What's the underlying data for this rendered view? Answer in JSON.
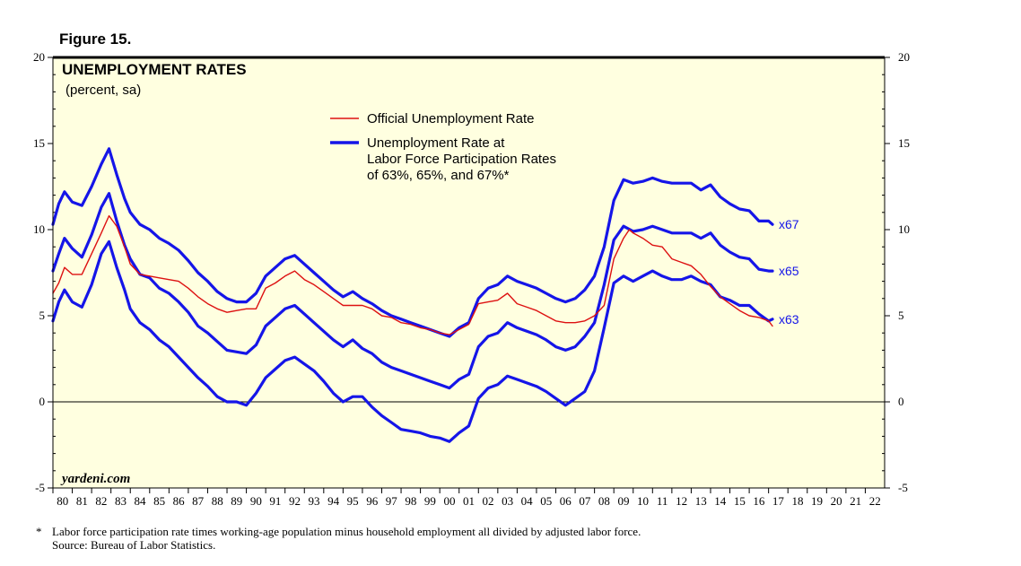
{
  "figure_label": "Figure 15.",
  "footnote": "Labor force participation rate times working-age population minus household employment all divided by adjusted labor force.",
  "footnote_marker": "*",
  "source": "Source: Bureau of Labor Statistics.",
  "colors": {
    "official": "#dd1111",
    "adjusted": "#1515e8",
    "plot_bg": "#ffffe0",
    "axis": "#000000"
  },
  "chart_data": {
    "type": "line",
    "title": "UNEMPLOYMENT RATES",
    "subtitle": "(percent, sa)",
    "watermark": "yardeni.com",
    "ylim": [
      -5,
      20
    ],
    "yticks": [
      -5,
      0,
      5,
      10,
      15,
      20
    ],
    "xlim": [
      1980,
      2023
    ],
    "xtick_labels": [
      "80",
      "81",
      "82",
      "83",
      "84",
      "85",
      "86",
      "87",
      "88",
      "89",
      "90",
      "91",
      "92",
      "93",
      "94",
      "95",
      "96",
      "97",
      "98",
      "99",
      "00",
      "01",
      "02",
      "03",
      "04",
      "05",
      "06",
      "07",
      "08",
      "09",
      "10",
      "11",
      "12",
      "13",
      "14",
      "15",
      "16",
      "17",
      "18",
      "19",
      "20",
      "21",
      "22"
    ],
    "legend": {
      "official": "Official Unemployment Rate",
      "adjusted": [
        "Unemployment Rate at",
        "Labor Force Participation Rates",
        "of 63%, 65%, and 67%*"
      ]
    },
    "series": [
      {
        "name": "Official Unemployment Rate",
        "label": "",
        "color": "#dd1111",
        "width": 1.4,
        "x": [
          1980.0,
          1980.3,
          1980.6,
          1981.0,
          1981.5,
          1982.0,
          1982.5,
          1982.9,
          1983.3,
          1983.7,
          1984.0,
          1984.5,
          1985.0,
          1985.5,
          1986.0,
          1986.5,
          1987.0,
          1987.5,
          1988.0,
          1988.5,
          1989.0,
          1989.5,
          1990.0,
          1990.5,
          1991.0,
          1991.5,
          1992.0,
          1992.5,
          1993.0,
          1993.5,
          1994.0,
          1994.5,
          1995.0,
          1995.5,
          1996.0,
          1996.5,
          1997.0,
          1997.5,
          1998.0,
          1998.5,
          1999.0,
          1999.5,
          2000.0,
          2000.5,
          2001.0,
          2001.5,
          2002.0,
          2002.5,
          2003.0,
          2003.5,
          2004.0,
          2004.5,
          2005.0,
          2005.5,
          2006.0,
          2006.5,
          2007.0,
          2007.5,
          2008.0,
          2008.5,
          2009.0,
          2009.5,
          2009.8,
          2010.0,
          2010.5,
          2011.0,
          2011.5,
          2012.0,
          2012.5,
          2013.0,
          2013.5,
          2014.0,
          2014.5,
          2015.0,
          2015.5,
          2016.0,
          2016.5,
          2017.0,
          2017.2
        ],
        "values": [
          6.3,
          6.9,
          7.8,
          7.4,
          7.4,
          8.6,
          9.8,
          10.8,
          10.2,
          9.0,
          8.0,
          7.4,
          7.3,
          7.2,
          7.1,
          7.0,
          6.6,
          6.1,
          5.7,
          5.4,
          5.2,
          5.3,
          5.4,
          5.4,
          6.6,
          6.9,
          7.3,
          7.6,
          7.1,
          6.8,
          6.4,
          6.0,
          5.6,
          5.6,
          5.6,
          5.4,
          5.0,
          4.9,
          4.6,
          4.5,
          4.3,
          4.2,
          4.0,
          3.9,
          4.2,
          4.5,
          5.7,
          5.8,
          5.9,
          6.3,
          5.7,
          5.5,
          5.3,
          5.0,
          4.7,
          4.6,
          4.6,
          4.7,
          5.0,
          5.6,
          8.3,
          9.5,
          10.0,
          9.8,
          9.5,
          9.1,
          9.0,
          8.3,
          8.1,
          7.9,
          7.4,
          6.7,
          6.1,
          5.7,
          5.3,
          5.0,
          4.9,
          4.7,
          4.4
        ]
      },
      {
        "name": "Unemployment Rate at 67% LFPR",
        "label": "x67",
        "color": "#1515e8",
        "width": 3.2,
        "x": [
          1980.0,
          1980.3,
          1980.6,
          1981.0,
          1981.5,
          1982.0,
          1982.5,
          1982.9,
          1983.3,
          1983.7,
          1984.0,
          1984.5,
          1985.0,
          1985.5,
          1986.0,
          1986.5,
          1987.0,
          1987.5,
          1988.0,
          1988.5,
          1989.0,
          1989.5,
          1990.0,
          1990.5,
          1991.0,
          1991.5,
          1992.0,
          1992.5,
          1993.0,
          1993.5,
          1994.0,
          1994.5,
          1995.0,
          1995.5,
          1996.0,
          1996.5,
          1997.0,
          1997.5,
          1998.0,
          1998.5,
          1999.0,
          1999.5,
          2000.0,
          2000.5,
          2001.0,
          2001.5,
          2002.0,
          2002.5,
          2003.0,
          2003.5,
          2004.0,
          2004.5,
          2005.0,
          2005.5,
          2006.0,
          2006.5,
          2007.0,
          2007.5,
          2008.0,
          2008.5,
          2009.0,
          2009.5,
          2010.0,
          2010.5,
          2011.0,
          2011.5,
          2012.0,
          2012.5,
          2013.0,
          2013.5,
          2014.0,
          2014.5,
          2015.0,
          2015.5,
          2016.0,
          2016.5,
          2017.0,
          2017.2
        ],
        "values": [
          10.3,
          11.5,
          12.2,
          11.6,
          11.4,
          12.5,
          13.8,
          14.7,
          13.2,
          11.8,
          11.0,
          10.3,
          10.0,
          9.5,
          9.2,
          8.8,
          8.2,
          7.5,
          7.0,
          6.4,
          6.0,
          5.8,
          5.8,
          6.3,
          7.3,
          7.8,
          8.3,
          8.5,
          8.0,
          7.5,
          7.0,
          6.5,
          6.1,
          6.4,
          6.0,
          5.7,
          5.3,
          5.0,
          4.8,
          4.6,
          4.4,
          4.2,
          4.0,
          3.8,
          4.3,
          4.6,
          6.0,
          6.6,
          6.8,
          7.3,
          7.0,
          6.8,
          6.6,
          6.3,
          6.0,
          5.8,
          6.0,
          6.5,
          7.3,
          9.0,
          11.7,
          12.9,
          12.7,
          12.8,
          13.0,
          12.8,
          12.7,
          12.7,
          12.7,
          12.3,
          12.6,
          11.9,
          11.5,
          11.2,
          11.1,
          10.5,
          10.5,
          10.3
        ]
      },
      {
        "name": "Unemployment Rate at 65% LFPR",
        "label": "x65",
        "color": "#1515e8",
        "width": 3.2,
        "x": [
          1980.0,
          1980.3,
          1980.6,
          1981.0,
          1981.5,
          1982.0,
          1982.5,
          1982.9,
          1983.3,
          1983.7,
          1984.0,
          1984.5,
          1985.0,
          1985.5,
          1986.0,
          1986.5,
          1987.0,
          1987.5,
          1988.0,
          1988.5,
          1989.0,
          1989.5,
          1990.0,
          1990.5,
          1991.0,
          1991.5,
          1992.0,
          1992.5,
          1993.0,
          1993.5,
          1994.0,
          1994.5,
          1995.0,
          1995.5,
          1996.0,
          1996.5,
          1997.0,
          1997.5,
          1998.0,
          1998.5,
          1999.0,
          1999.5,
          2000.0,
          2000.5,
          2001.0,
          2001.5,
          2002.0,
          2002.5,
          2003.0,
          2003.5,
          2004.0,
          2004.5,
          2005.0,
          2005.5,
          2006.0,
          2006.5,
          2007.0,
          2007.5,
          2008.0,
          2008.5,
          2009.0,
          2009.5,
          2010.0,
          2010.5,
          2011.0,
          2011.5,
          2012.0,
          2012.5,
          2013.0,
          2013.5,
          2014.0,
          2014.5,
          2015.0,
          2015.5,
          2016.0,
          2016.5,
          2017.0,
          2017.2
        ],
        "values": [
          7.6,
          8.6,
          9.5,
          8.9,
          8.4,
          9.7,
          11.3,
          12.1,
          10.5,
          9.1,
          8.3,
          7.4,
          7.2,
          6.6,
          6.3,
          5.8,
          5.2,
          4.4,
          4.0,
          3.5,
          3.0,
          2.9,
          2.8,
          3.3,
          4.4,
          4.9,
          5.4,
          5.6,
          5.1,
          4.6,
          4.1,
          3.6,
          3.2,
          3.6,
          3.1,
          2.8,
          2.3,
          2.0,
          1.8,
          1.6,
          1.4,
          1.2,
          1.0,
          0.8,
          1.3,
          1.6,
          3.2,
          3.8,
          4.0,
          4.6,
          4.3,
          4.1,
          3.9,
          3.6,
          3.2,
          3.0,
          3.2,
          3.8,
          4.6,
          6.8,
          9.4,
          10.2,
          9.9,
          10.0,
          10.2,
          10.0,
          9.8,
          9.8,
          9.8,
          9.5,
          9.8,
          9.1,
          8.7,
          8.4,
          8.3,
          7.7,
          7.6,
          7.6
        ]
      },
      {
        "name": "Unemployment Rate at 63% LFPR",
        "label": "x63",
        "color": "#1515e8",
        "width": 3.2,
        "x": [
          1980.0,
          1980.3,
          1980.6,
          1981.0,
          1981.5,
          1982.0,
          1982.5,
          1982.9,
          1983.3,
          1983.7,
          1984.0,
          1984.5,
          1985.0,
          1985.5,
          1986.0,
          1986.5,
          1987.0,
          1987.5,
          1988.0,
          1988.5,
          1989.0,
          1989.5,
          1990.0,
          1990.5,
          1991.0,
          1991.5,
          1992.0,
          1992.5,
          1993.0,
          1993.5,
          1994.0,
          1994.5,
          1995.0,
          1995.5,
          1996.0,
          1996.5,
          1997.0,
          1997.5,
          1998.0,
          1998.5,
          1999.0,
          1999.5,
          2000.0,
          2000.5,
          2001.0,
          2001.5,
          2002.0,
          2002.5,
          2003.0,
          2003.5,
          2004.0,
          2004.5,
          2005.0,
          2005.5,
          2006.0,
          2006.5,
          2007.0,
          2007.5,
          2008.0,
          2008.5,
          2009.0,
          2009.5,
          2010.0,
          2010.5,
          2011.0,
          2011.5,
          2012.0,
          2012.5,
          2013.0,
          2013.5,
          2014.0,
          2014.5,
          2015.0,
          2015.5,
          2016.0,
          2016.5,
          2017.0,
          2017.2
        ],
        "values": [
          4.7,
          5.8,
          6.5,
          5.8,
          5.5,
          6.8,
          8.6,
          9.3,
          7.8,
          6.5,
          5.4,
          4.6,
          4.2,
          3.6,
          3.2,
          2.6,
          2.0,
          1.4,
          0.9,
          0.3,
          0.0,
          0.0,
          -0.2,
          0.5,
          1.4,
          1.9,
          2.4,
          2.6,
          2.2,
          1.8,
          1.2,
          0.5,
          0.0,
          0.3,
          0.3,
          -0.3,
          -0.8,
          -1.2,
          -1.6,
          -1.7,
          -1.8,
          -2.0,
          -2.1,
          -2.3,
          -1.8,
          -1.4,
          0.2,
          0.8,
          1.0,
          1.5,
          1.3,
          1.1,
          0.9,
          0.6,
          0.2,
          -0.2,
          0.2,
          0.6,
          1.8,
          4.3,
          6.9,
          7.3,
          7.0,
          7.3,
          7.6,
          7.3,
          7.1,
          7.1,
          7.3,
          7.0,
          6.8,
          6.1,
          5.9,
          5.6,
          5.6,
          5.1,
          4.7,
          4.8
        ]
      }
    ]
  }
}
